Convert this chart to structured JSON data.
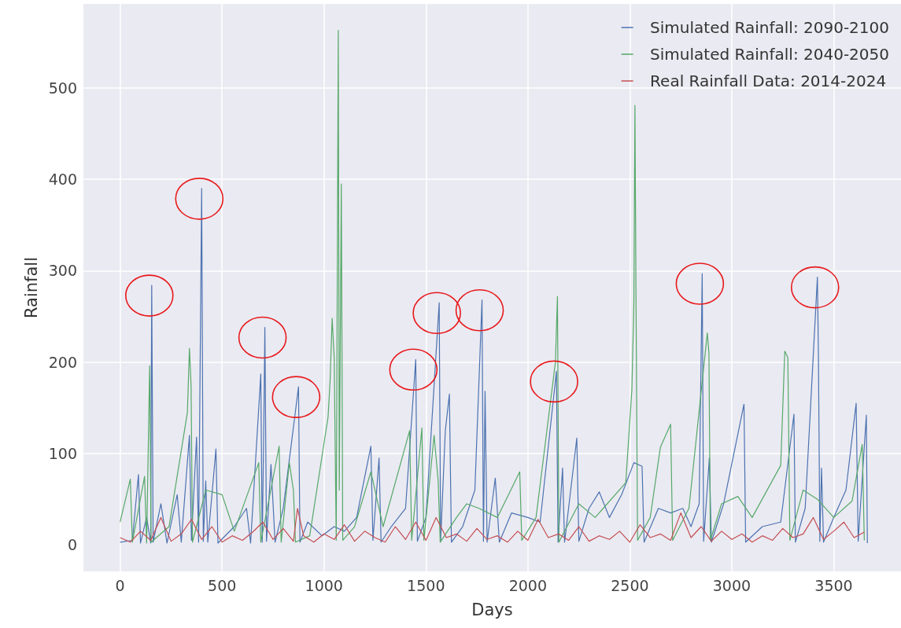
{
  "chart_data": {
    "type": "line",
    "xlabel": "Days",
    "ylabel": "Rainfall",
    "xlim": [
      -180,
      3830
    ],
    "ylim": [
      -29,
      592
    ],
    "xticks": [
      0,
      500,
      1000,
      1500,
      2000,
      2500,
      3000,
      3500
    ],
    "yticks": [
      0,
      100,
      200,
      300,
      400,
      500
    ],
    "grid": true,
    "legend": "top right",
    "marker": "none",
    "line_style": "solid",
    "series": [
      {
        "name": "Simulated Rainfall: 2090-2100",
        "color": "#4c72b0",
        "x": [
          0,
          60,
          90,
          100,
          130,
          150,
          155,
          162,
          200,
          230,
          280,
          300,
          340,
          350,
          375,
          385,
          400,
          408,
          420,
          430,
          470,
          480,
          560,
          620,
          640,
          690,
          697,
          705,
          710,
          718,
          740,
          760,
          800,
          875,
          882,
          920,
          990,
          1050,
          1100,
          1160,
          1230,
          1240,
          1270,
          1280,
          1330,
          1400,
          1450,
          1458,
          1500,
          1565,
          1572,
          1595,
          1615,
          1625,
          1680,
          1740,
          1775,
          1782,
          1790,
          1800,
          1840,
          1860,
          1920,
          2000,
          2060,
          2140,
          2148,
          2170,
          2180,
          2240,
          2250,
          2300,
          2350,
          2400,
          2460,
          2520,
          2560,
          2570,
          2640,
          2700,
          2760,
          2800,
          2840,
          2855,
          2862,
          2890,
          2900,
          2960,
          3060,
          3068,
          3150,
          3240,
          3305,
          3312,
          3360,
          3420,
          3425,
          3432,
          3440,
          3450,
          3500,
          3560,
          3610,
          3620,
          3660,
          3665
        ],
        "values": [
          3,
          5,
          77,
          2,
          30,
          2,
          284,
          3,
          45,
          2,
          55,
          3,
          120,
          5,
          118,
          3,
          390,
          4,
          70,
          3,
          105,
          2,
          20,
          40,
          2,
          187,
          3,
          135,
          238,
          4,
          88,
          3,
          40,
          173,
          3,
          25,
          10,
          20,
          15,
          30,
          108,
          5,
          95,
          3,
          20,
          40,
          203,
          4,
          30,
          265,
          4,
          125,
          165,
          3,
          20,
          60,
          268,
          4,
          168,
          3,
          73,
          3,
          35,
          30,
          25,
          190,
          3,
          84,
          3,
          117,
          4,
          40,
          58,
          30,
          55,
          90,
          86,
          3,
          40,
          35,
          40,
          20,
          45,
          297,
          4,
          95,
          3,
          45,
          154,
          3,
          20,
          25,
          143,
          3,
          40,
          293,
          208,
          4,
          84,
          3,
          30,
          60,
          155,
          4,
          142,
          2
        ]
      },
      {
        "name": "Simulated Rainfall: 2040-2050",
        "color": "#55a868",
        "x": [
          0,
          50,
          60,
          120,
          130,
          145,
          152,
          240,
          330,
          340,
          348,
          355,
          420,
          500,
          560,
          680,
          690,
          780,
          790,
          830,
          850,
          860,
          930,
          1020,
          1030,
          1040,
          1050,
          1060,
          1070,
          1075,
          1085,
          1092,
          1150,
          1230,
          1290,
          1420,
          1430,
          1480,
          1490,
          1540,
          1560,
          1570,
          1650,
          1700,
          1760,
          1850,
          1960,
          1970,
          2040,
          2135,
          2145,
          2152,
          2250,
          2330,
          2480,
          2510,
          2520,
          2525,
          2530,
          2538,
          2600,
          2650,
          2700,
          2710,
          2790,
          2880,
          2888,
          2895,
          2950,
          3030,
          3100,
          3240,
          3260,
          3275,
          3285,
          3350,
          3420,
          3500,
          3590,
          3640,
          3650
        ],
        "values": [
          25,
          72,
          3,
          75,
          2,
          196,
          3,
          20,
          145,
          215,
          175,
          3,
          60,
          55,
          15,
          90,
          3,
          108,
          3,
          90,
          60,
          3,
          10,
          140,
          180,
          248,
          205,
          5,
          563,
          60,
          395,
          5,
          20,
          80,
          20,
          125,
          5,
          128,
          5,
          120,
          70,
          3,
          30,
          45,
          40,
          30,
          80,
          5,
          30,
          200,
          272,
          3,
          45,
          30,
          68,
          170,
          265,
          481,
          278,
          5,
          30,
          107,
          132,
          5,
          40,
          232,
          210,
          5,
          45,
          53,
          30,
          87,
          212,
          205,
          5,
          60,
          50,
          30,
          48,
          110,
          5
        ]
      },
      {
        "name": "Real Rainfall Data: 2014-2024",
        "color": "#c44e52",
        "x": [
          0,
          50,
          100,
          150,
          200,
          250,
          300,
          350,
          400,
          450,
          500,
          550,
          600,
          650,
          700,
          750,
          800,
          850,
          870,
          900,
          950,
          1000,
          1050,
          1100,
          1150,
          1200,
          1250,
          1300,
          1350,
          1400,
          1450,
          1500,
          1550,
          1600,
          1650,
          1700,
          1750,
          1800,
          1850,
          1900,
          1950,
          2000,
          2050,
          2100,
          2150,
          2200,
          2250,
          2300,
          2350,
          2400,
          2450,
          2500,
          2550,
          2600,
          2650,
          2700,
          2750,
          2800,
          2850,
          2900,
          2950,
          3000,
          3050,
          3100,
          3150,
          3200,
          3250,
          3300,
          3350,
          3400,
          3450,
          3500,
          3550,
          3600,
          3650
        ],
        "values": [
          8,
          3,
          15,
          5,
          30,
          4,
          12,
          28,
          6,
          20,
          3,
          10,
          5,
          14,
          25,
          6,
          18,
          4,
          40,
          10,
          3,
          12,
          6,
          22,
          4,
          15,
          8,
          3,
          20,
          6,
          25,
          5,
          30,
          8,
          12,
          4,
          18,
          6,
          10,
          3,
          15,
          5,
          28,
          8,
          12,
          5,
          20,
          4,
          10,
          6,
          15,
          3,
          22,
          8,
          12,
          5,
          35,
          8,
          20,
          4,
          15,
          6,
          12,
          3,
          10,
          5,
          18,
          8,
          12,
          30,
          6,
          15,
          25,
          8,
          14
        ]
      }
    ]
  }
}
